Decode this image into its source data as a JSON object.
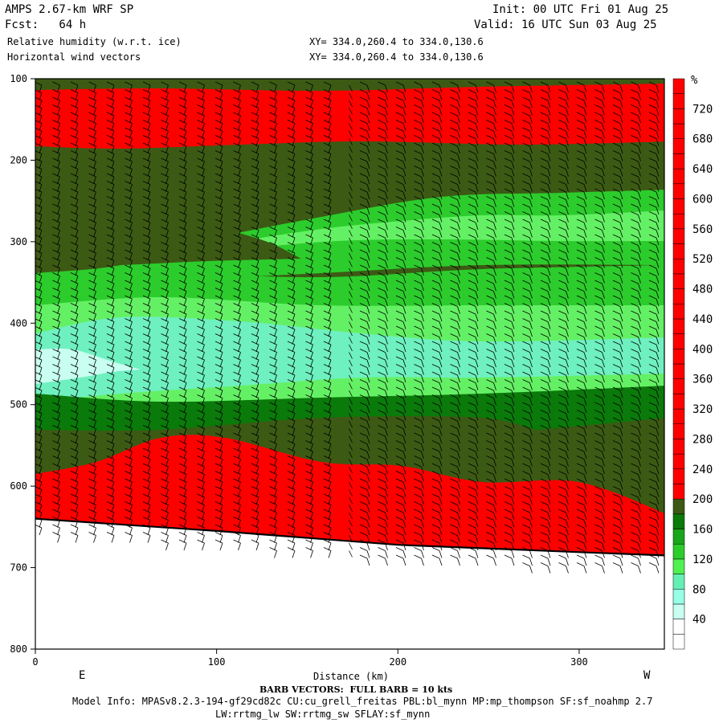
{
  "header": {
    "model": "AMPS 2.67-km WRF SP",
    "forecast": "Fcst:   64 h",
    "field1": "Relative humidity (w.r.t. ice)",
    "field2": "Horizontal wind vectors",
    "init": "Init: 00 UTC Fri 01 Aug 25",
    "valid": "Valid: 16 UTC Sun 03 Aug 25",
    "xy1": "XY= 334.0,260.4 to 334.0,130.6",
    "xy2": "XY= 334.0,260.4 to 334.0,130.6"
  },
  "footer": {
    "barb_note": "BARB VECTORS:  FULL BARB = 10 kts",
    "model_info": "Model Info: MPASv8.2.3-194-gf29cd82c CU:cu_grell_freitas PBL:bl_mynn MP:mp_thompson SF:sf_noahmp 2.7",
    "model_info2": "LW:rrtmg_lw SW:rrtmg_sw SFLAY:sf_mynn"
  },
  "chart_data": {
    "type": "heatmap",
    "xlabel": "Distance (km)",
    "ylabel": "",
    "x_ticks": [
      0,
      100,
      200,
      300
    ],
    "y_ticks": [
      100,
      200,
      300,
      400,
      500,
      600,
      700,
      800
    ],
    "xlim": [
      0,
      347
    ],
    "ylim": [
      800,
      100
    ],
    "x_end_labels": {
      "left": "E",
      "right": "W"
    },
    "colorbar": {
      "unit": "%",
      "ticks": [
        40,
        80,
        120,
        160,
        200,
        240,
        280,
        320,
        360,
        400,
        440,
        480,
        520,
        560,
        600,
        640,
        680,
        720
      ],
      "colors": [
        "#ffffff",
        "#ffffff",
        "#c8fff0",
        "#96ffe6",
        "#64f0b4",
        "#50f050",
        "#2ccc2c",
        "#1aa61a",
        "#0a7a0a",
        "#3c5a14",
        "#ff0000",
        "#ff0000",
        "#ff0000",
        "#ff0000",
        "#ff0000",
        "#ff0000",
        "#ff0000",
        "#ff0000",
        "#ff0000",
        "#ff0000",
        "#ff0000",
        "#ff0000",
        "#ff0000",
        "#ff0000",
        "#ff0000",
        "#ff0000",
        "#ff0000",
        "#ff0000",
        "#ff0000",
        "#ff0000",
        "#ff0000",
        "#ff0000",
        "#ff0000",
        "#ff0000",
        "#ff0000",
        "#ff0000",
        "#ff0000",
        "#ff0000"
      ]
    },
    "colors": {
      "red": "#ff0000",
      "dark_olive": "#3c5a14",
      "dark_green": "#0a7a0a",
      "green": "#2ccc2c",
      "light_green": "#64f064",
      "aqua": "#6ef0c0",
      "pale_aqua": "#c8fff0",
      "frame": "#000000"
    },
    "bands": [
      {
        "p_top": 100,
        "p_bottom": 112,
        "rh": "dark_olive"
      },
      {
        "p_top": 112,
        "p_bottom": 180,
        "rh": "red"
      },
      {
        "p_top": 180,
        "p_bottom": 245,
        "rh": "dark_olive"
      },
      {
        "p_top": 245,
        "p_bottom": 330,
        "rh": "dark_olive/green"
      },
      {
        "p_top": 330,
        "p_bottom": 420,
        "rh": "green"
      },
      {
        "p_top": 420,
        "p_bottom": 490,
        "rh": "aqua"
      },
      {
        "p_top": 490,
        "p_bottom": 540,
        "rh": "green"
      },
      {
        "p_top": 540,
        "p_bottom": 600,
        "rh": "dark_olive"
      },
      {
        "p_top": 580,
        "p_bottom": 690,
        "rh": "red"
      }
    ],
    "terrain_pressure": [
      {
        "x": 0,
        "p": 640
      },
      {
        "x": 100,
        "p": 655
      },
      {
        "x": 200,
        "p": 672
      },
      {
        "x": 300,
        "p": 681
      },
      {
        "x": 347,
        "p": 685
      }
    ]
  }
}
